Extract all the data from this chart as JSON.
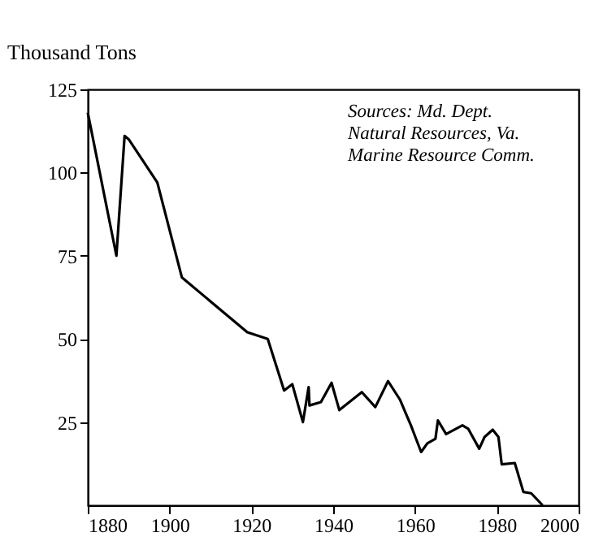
{
  "chart_data": {
    "type": "line",
    "ylabel": "Thousand Tons",
    "annotations": [
      "Sources: Md. Dept.\nNatural Resources, Va.\nMarine Resource Comm."
    ],
    "x": [
      1880,
      1887,
      1889,
      1890,
      1897,
      1903,
      1919,
      1924,
      1928,
      1930,
      1932.6,
      1934,
      1934.2,
      1937,
      1939.6,
      1941.5,
      1947,
      1950.3,
      1953.4,
      1956.3,
      1959,
      1961.5,
      1963,
      1965,
      1965.6,
      1967.6,
      1971.6,
      1973,
      1975.7,
      1977,
      1979,
      1980.4,
      1981.2,
      1984.4,
      1986.5,
      1988.4,
      1991.2
    ],
    "values": [
      118,
      75,
      111,
      110,
      97,
      68.5,
      52,
      50,
      34.5,
      36.4,
      25,
      35.5,
      30,
      31,
      36.8,
      28.6,
      34,
      29.5,
      37.3,
      31.8,
      24,
      16,
      18.6,
      20,
      25.5,
      21.4,
      24,
      23,
      17,
      20.5,
      22.7,
      20.5,
      12.3,
      12.7,
      4,
      3.6,
      0
    ],
    "color": "#000000",
    "xlim": [
      1880,
      2000
    ],
    "xticks": [
      1880,
      1900,
      1920,
      1940,
      1960,
      1980,
      2000
    ],
    "ylim": [
      0,
      125
    ],
    "yticks": [
      25,
      50,
      75,
      100,
      125
    ],
    "grid": false,
    "marker": "none",
    "line_style": "solid"
  }
}
